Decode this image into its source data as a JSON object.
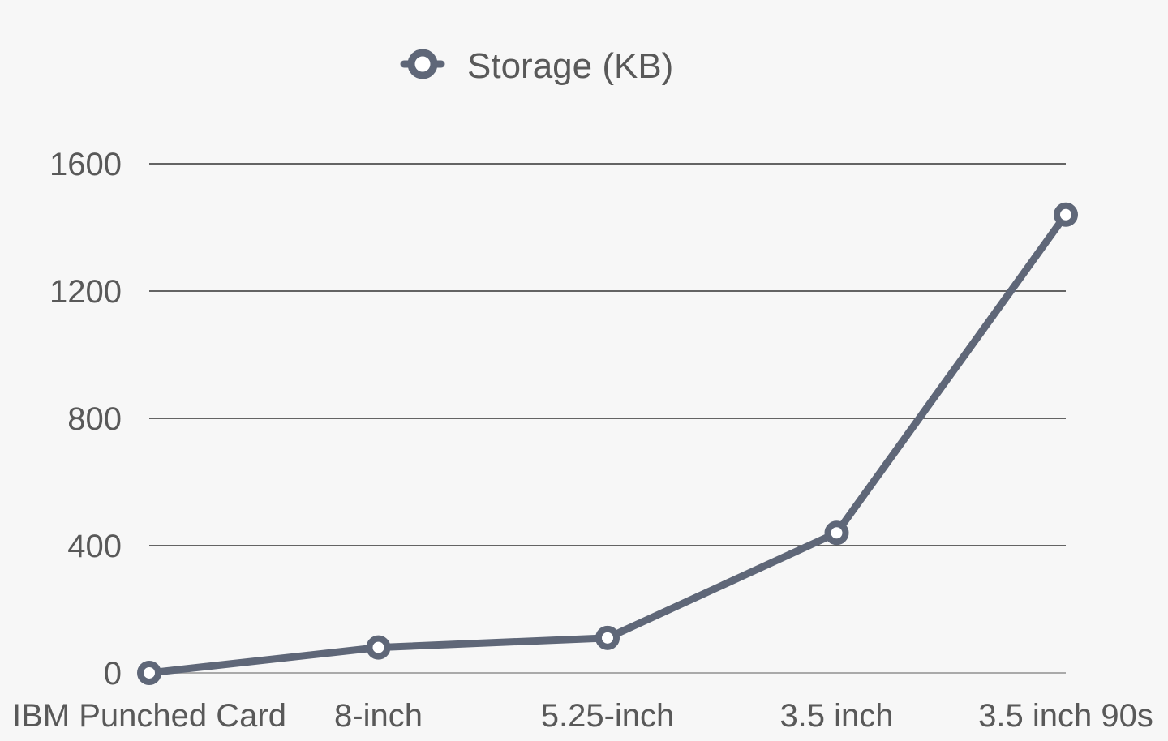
{
  "chart_data": {
    "type": "line",
    "categories": [
      "IBM Punched Card",
      "8-inch",
      "5.25-inch",
      "3.5 inch",
      "3.5 inch 90s"
    ],
    "series": [
      {
        "name": "Storage (KB)",
        "values": [
          0.1,
          80,
          110,
          440,
          1440
        ],
        "color": "#5f6778"
      }
    ],
    "title": "",
    "xlabel": "",
    "ylabel": "",
    "ylim": [
      0,
      1600
    ],
    "yticks": [
      0,
      400,
      800,
      1200,
      1600
    ],
    "grid": true,
    "legend_position": "top-center",
    "gridline_color": "#333333",
    "baseline_color": "#aaaaaa",
    "background_color": "#f7f7f7"
  }
}
